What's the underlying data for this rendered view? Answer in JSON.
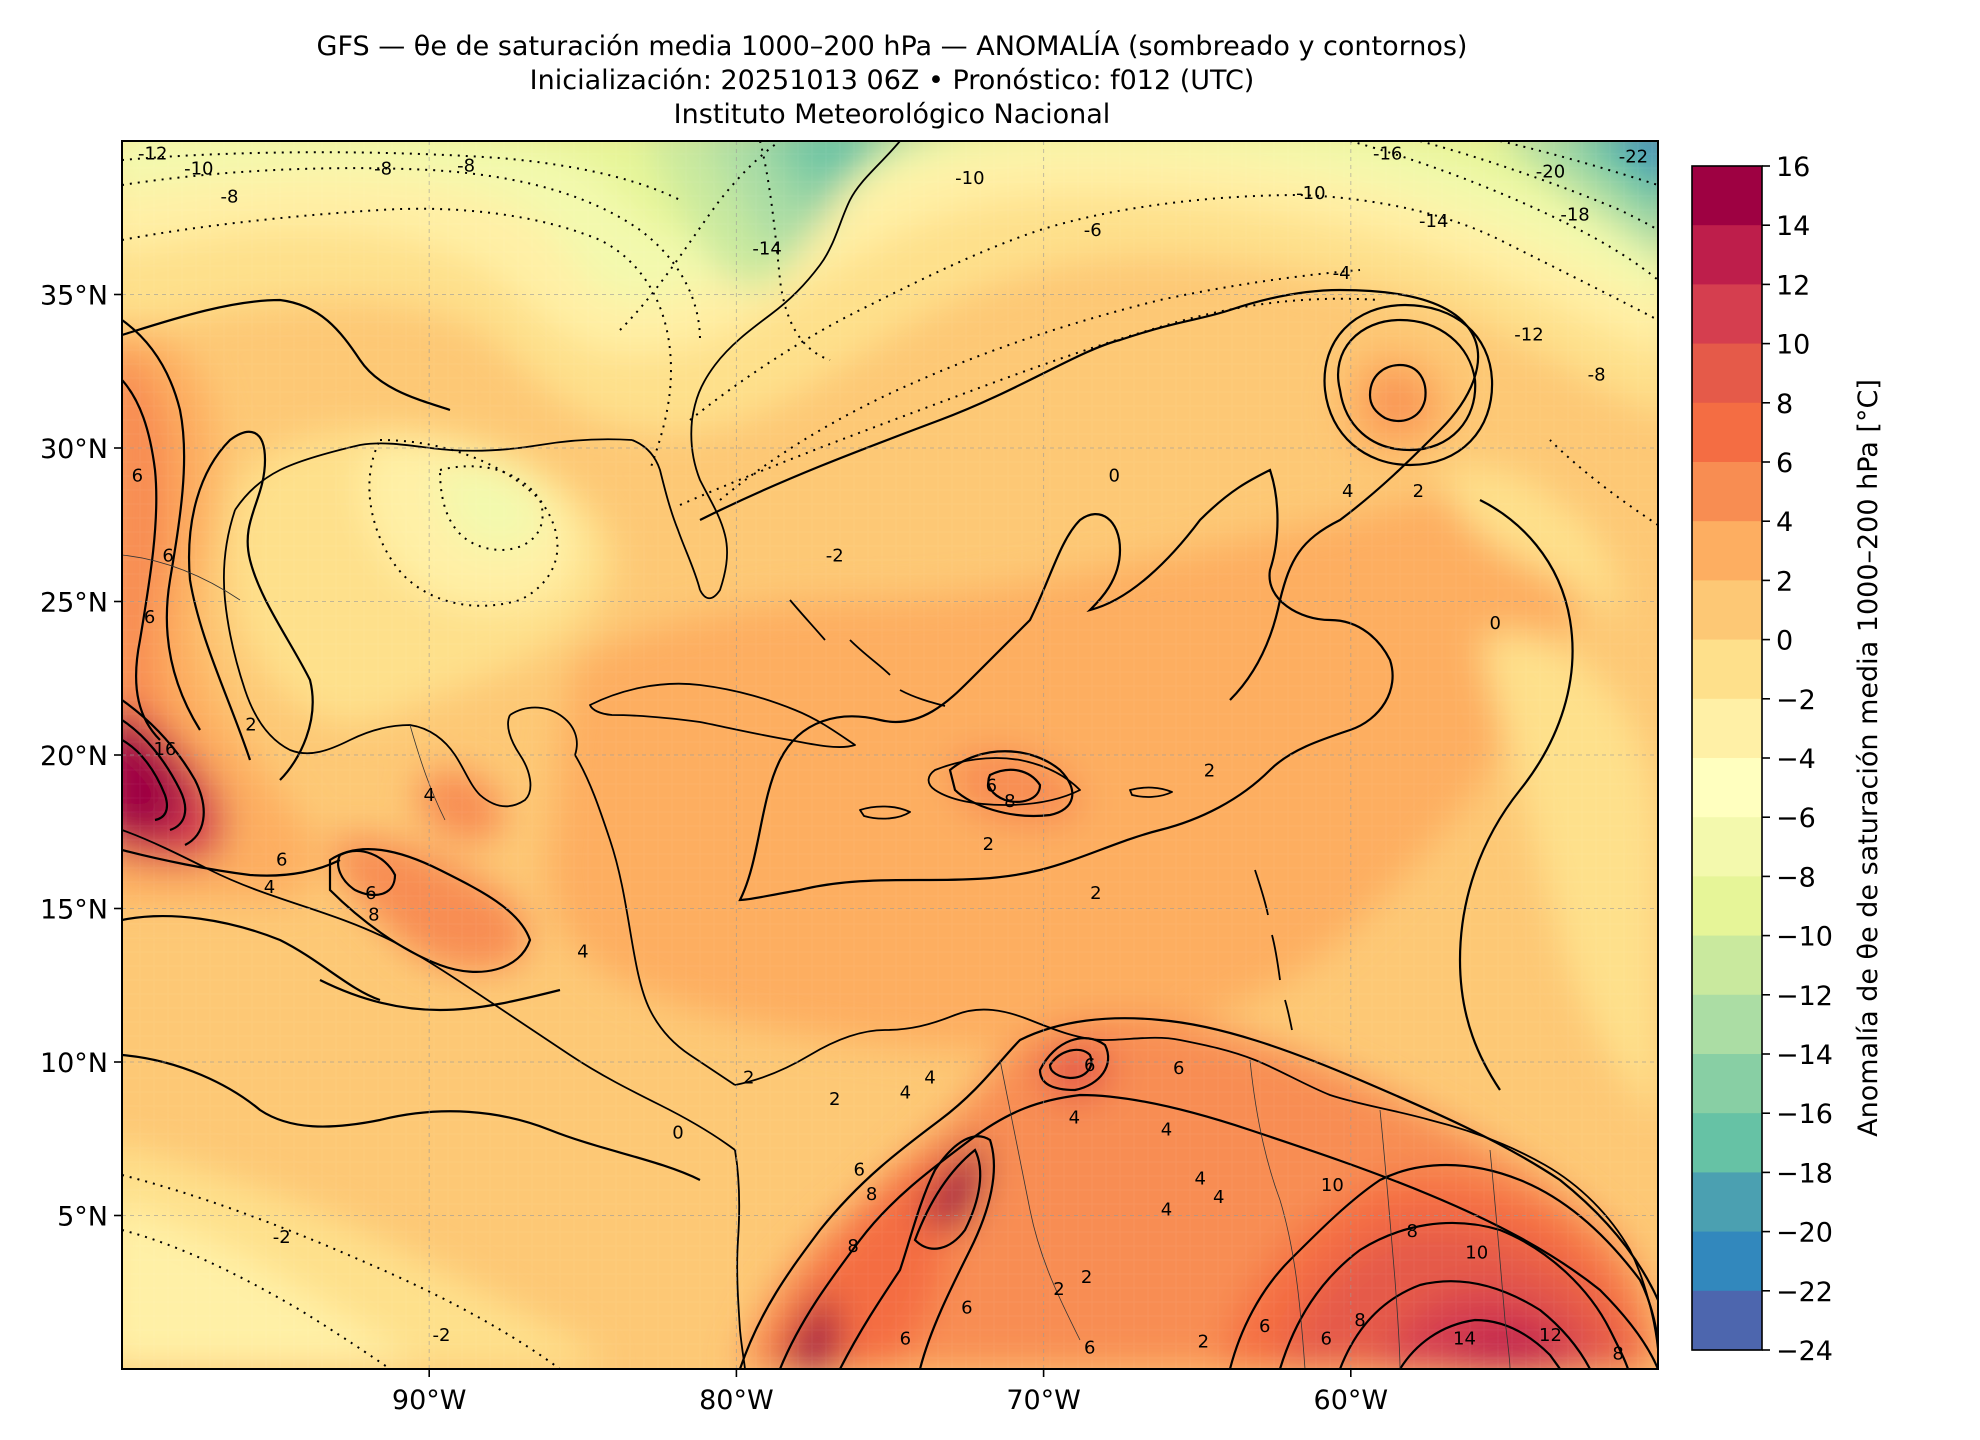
{
  "title": {
    "line1": "GFS — θe de saturación media 1000–200 hPa — ANOMALÍA (sombreado y contornos)",
    "line2": "Inicialización: 20251013 06Z   •   Pronóstico: f012 (UTC)",
    "line3": "Instituto Meteorológico Nacional"
  },
  "map": {
    "lon_range": [
      -100,
      -50
    ],
    "lat_range": [
      0,
      40
    ],
    "lon_ticks": [
      {
        "value": -90,
        "label": "90°W"
      },
      {
        "value": -80,
        "label": "80°W"
      },
      {
        "value": -70,
        "label": "70°W"
      },
      {
        "value": -60,
        "label": "60°W"
      }
    ],
    "lat_ticks": [
      {
        "value": 35,
        "label": "35°N"
      },
      {
        "value": 30,
        "label": "30°N"
      },
      {
        "value": 25,
        "label": "25°N"
      },
      {
        "value": 20,
        "label": "20°N"
      },
      {
        "value": 15,
        "label": "15°N"
      },
      {
        "value": 10,
        "label": "10°N"
      },
      {
        "value": 5,
        "label": "5°N"
      }
    ],
    "gridlines": true
  },
  "colorbar": {
    "label": "Anomalía de θe de saturación media 1000–200 hPa [°C]",
    "range": [
      -24,
      16
    ],
    "step": 2,
    "tick_labels": [
      "16",
      "14",
      "12",
      "10",
      "8",
      "6",
      "4",
      "2",
      "0",
      "−2",
      "−4",
      "−6",
      "−8",
      "−10",
      "−12",
      "−14",
      "−16",
      "−18",
      "−20",
      "−22",
      "−24"
    ],
    "colors": [
      "#9e0142",
      "#be1e4b",
      "#d53e4f",
      "#e55a49",
      "#f46d43",
      "#f88d52",
      "#fdae61",
      "#fdc875",
      "#fee08b",
      "#fff0a6",
      "#ffffbf",
      "#f3f9ad",
      "#e6f598",
      "#c9e99e",
      "#abdda4",
      "#88cfa4",
      "#66c2a5",
      "#4ba0b1",
      "#3288bd",
      "#4d66ae",
      "#5e4fa2"
    ]
  },
  "contour_labels": [
    {
      "text": "-12",
      "lon": -99,
      "lat": 39.6
    },
    {
      "text": "-10",
      "lon": -97.5,
      "lat": 39.1
    },
    {
      "text": "-8",
      "lon": -96.5,
      "lat": 38.2
    },
    {
      "text": "-8",
      "lon": -91.5,
      "lat": 39.1
    },
    {
      "text": "-8",
      "lon": -88.8,
      "lat": 39.2
    },
    {
      "text": "-14",
      "lon": -79,
      "lat": 36.5
    },
    {
      "text": "-10",
      "lon": -72.4,
      "lat": 38.8
    },
    {
      "text": "-6",
      "lon": -68.4,
      "lat": 37.1
    },
    {
      "text": "-16",
      "lon": -58.8,
      "lat": 39.6
    },
    {
      "text": "-20",
      "lon": -53.5,
      "lat": 39
    },
    {
      "text": "-22",
      "lon": -50.8,
      "lat": 39.5
    },
    {
      "text": "-14",
      "lon": -57.3,
      "lat": 37.4
    },
    {
      "text": "-18",
      "lon": -52.7,
      "lat": 37.6
    },
    {
      "text": "-10",
      "lon": -61.3,
      "lat": 38.3
    },
    {
      "text": "-4",
      "lon": -60.3,
      "lat": 35.7
    },
    {
      "text": "-12",
      "lon": -54.2,
      "lat": 33.7
    },
    {
      "text": "-8",
      "lon": -52,
      "lat": 32.4
    },
    {
      "text": "-2",
      "lon": -76.8,
      "lat": 26.5
    },
    {
      "text": "0",
      "lon": -67.7,
      "lat": 29.1
    },
    {
      "text": "4",
      "lon": -60.1,
      "lat": 28.6
    },
    {
      "text": "2",
      "lon": -57.8,
      "lat": 28.6
    },
    {
      "text": "0",
      "lon": -55.3,
      "lat": 24.3
    },
    {
      "text": "6",
      "lon": -99.5,
      "lat": 29.1
    },
    {
      "text": "6",
      "lon": -98.5,
      "lat": 26.5
    },
    {
      "text": "6",
      "lon": -99.1,
      "lat": 24.5
    },
    {
      "text": "2",
      "lon": -95.8,
      "lat": 21
    },
    {
      "text": "16",
      "lon": -98.6,
      "lat": 20.2
    },
    {
      "text": "4",
      "lon": -90,
      "lat": 18.7
    },
    {
      "text": "6",
      "lon": -94.8,
      "lat": 16.6
    },
    {
      "text": "6",
      "lon": -91.9,
      "lat": 15.5
    },
    {
      "text": "4",
      "lon": -95.2,
      "lat": 15.7
    },
    {
      "text": "8",
      "lon": -91.8,
      "lat": 14.8
    },
    {
      "text": "4",
      "lon": -85,
      "lat": 13.6
    },
    {
      "text": "2",
      "lon": -64.6,
      "lat": 19.5
    },
    {
      "text": "6",
      "lon": -71.7,
      "lat": 19
    },
    {
      "text": "8",
      "lon": -71.1,
      "lat": 18.5
    },
    {
      "text": "2",
      "lon": -71.8,
      "lat": 17.1
    },
    {
      "text": "2",
      "lon": -68.3,
      "lat": 15.5
    },
    {
      "text": "6",
      "lon": -68.5,
      "lat": 9.9
    },
    {
      "text": "6",
      "lon": -65.6,
      "lat": 9.8
    },
    {
      "text": "4",
      "lon": -74.5,
      "lat": 9
    },
    {
      "text": "4",
      "lon": -73.7,
      "lat": 9.5
    },
    {
      "text": "4",
      "lon": -69,
      "lat": 8.2
    },
    {
      "text": "4",
      "lon": -66,
      "lat": 7.8
    },
    {
      "text": "4",
      "lon": -64.9,
      "lat": 6.2
    },
    {
      "text": "4",
      "lon": -66,
      "lat": 5.2
    },
    {
      "text": "4",
      "lon": -64.3,
      "lat": 5.6
    },
    {
      "text": "2",
      "lon": -79.6,
      "lat": 9.5
    },
    {
      "text": "2",
      "lon": -76.8,
      "lat": 8.8
    },
    {
      "text": "0",
      "lon": -81.9,
      "lat": 7.7
    },
    {
      "text": "6",
      "lon": -76,
      "lat": 6.5
    },
    {
      "text": "8",
      "lon": -75.6,
      "lat": 5.7
    },
    {
      "text": "8",
      "lon": -76.2,
      "lat": 4
    },
    {
      "text": "6",
      "lon": -72.5,
      "lat": 2
    },
    {
      "text": "6",
      "lon": -74.5,
      "lat": 1
    },
    {
      "text": "2",
      "lon": -69.5,
      "lat": 2.6
    },
    {
      "text": "2",
      "lon": -68.6,
      "lat": 3
    },
    {
      "text": "2",
      "lon": -64.8,
      "lat": 0.9
    },
    {
      "text": "6",
      "lon": -68.5,
      "lat": 0.7
    },
    {
      "text": "6",
      "lon": -62.8,
      "lat": 1.4
    },
    {
      "text": "6",
      "lon": -60.8,
      "lat": 1
    },
    {
      "text": "8",
      "lon": -59.7,
      "lat": 1.6
    },
    {
      "text": "10",
      "lon": -60.6,
      "lat": 6
    },
    {
      "text": "8",
      "lon": -58,
      "lat": 4.5
    },
    {
      "text": "10",
      "lon": -55.9,
      "lat": 3.8
    },
    {
      "text": "14",
      "lon": -56.3,
      "lat": 1
    },
    {
      "text": "12",
      "lon": -53.5,
      "lat": 1.1
    },
    {
      "text": "-2",
      "lon": -94.8,
      "lat": 4.3
    },
    {
      "text": "-2",
      "lon": -89.6,
      "lat": 1.1
    },
    {
      "text": "8",
      "lon": -51.3,
      "lat": 0.5
    }
  ]
}
